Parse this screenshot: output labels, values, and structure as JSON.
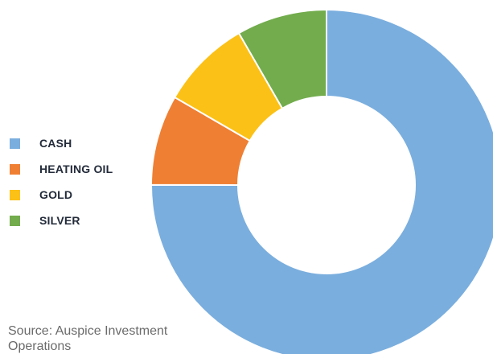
{
  "chart_data": {
    "type": "pie",
    "style": "donut",
    "title": "",
    "categories": [
      "CASH",
      "HEATING OIL",
      "GOLD",
      "SILVER"
    ],
    "values": [
      75,
      8.33,
      8.33,
      8.33
    ],
    "unit": "%",
    "colors": [
      "#7AAEDE",
      "#EF7F33",
      "#FCC116",
      "#72AC4D"
    ],
    "legend_position": "left"
  },
  "source": "Source: Auspice Investment Operations"
}
